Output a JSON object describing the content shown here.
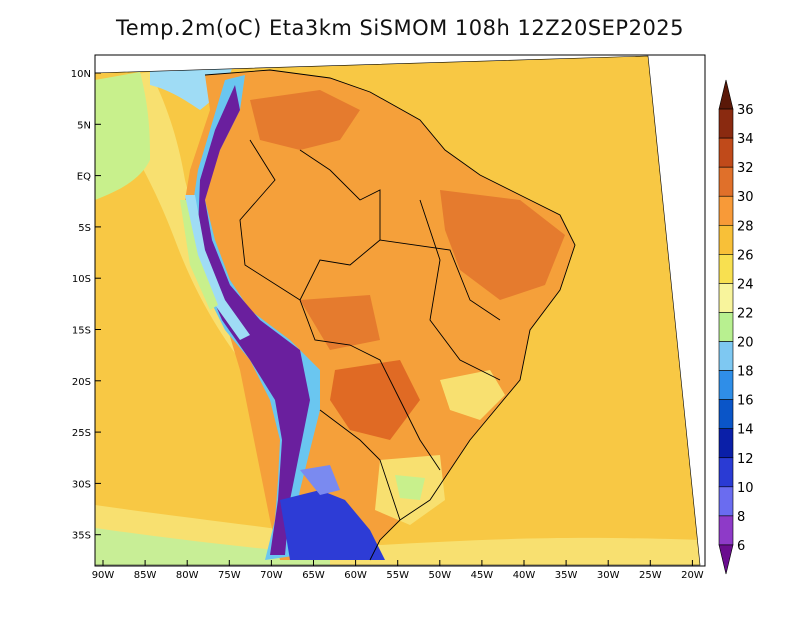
{
  "title": "Temp.2m(oC) Eta3km SiSMOM 108h 12Z20SEP2025",
  "lat_labels": [
    "10N",
    "5N",
    "EQ",
    "5S",
    "10S",
    "15S",
    "20S",
    "25S",
    "30S",
    "35S"
  ],
  "lon_labels": [
    "90W",
    "85W",
    "80W",
    "75W",
    "70W",
    "65W",
    "60W",
    "55W",
    "50W",
    "45W",
    "40W",
    "35W",
    "30W",
    "25W",
    "20W"
  ],
  "colorbar": {
    "labels": [
      "6",
      "8",
      "10",
      "12",
      "14",
      "16",
      "18",
      "20",
      "22",
      "24",
      "26",
      "28",
      "30",
      "32",
      "34",
      "36"
    ],
    "colors": [
      "#6a0d8f",
      "#8e3ac8",
      "#6a6cf0",
      "#2a3bd4",
      "#0a1fa8",
      "#0a55c8",
      "#2f8ee8",
      "#7ec8f2",
      "#b8f090",
      "#f8f49c",
      "#f8e050",
      "#f8c038",
      "#f89a38",
      "#e0702a",
      "#c04a1a",
      "#8a2a10",
      "#5a1808"
    ]
  },
  "map_regions": {
    "ocean_base": "#f8c844",
    "warm_land": "#f5a03a",
    "hot_core": "#e57b2e",
    "cool_coast": "#9fdcf5",
    "andes_cold": "#6a1f9e",
    "south_cold": "#2d3cd6",
    "mild_green": "#c8f08c"
  }
}
